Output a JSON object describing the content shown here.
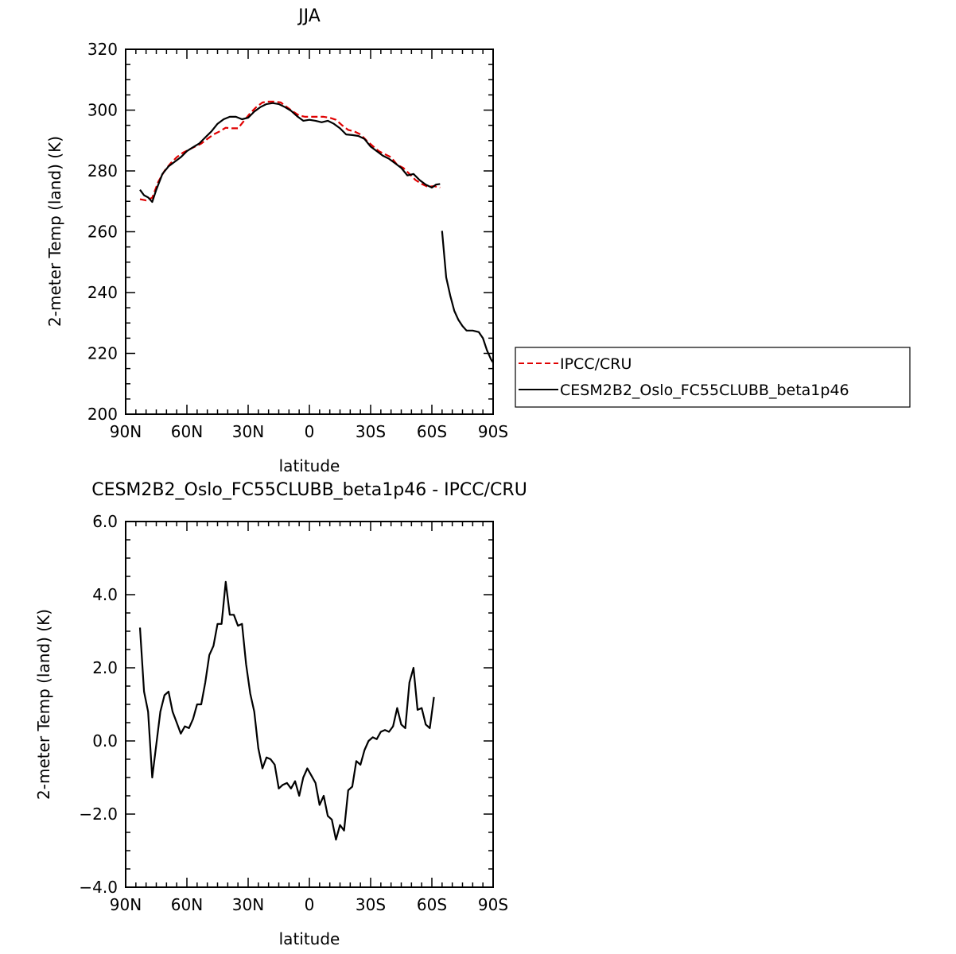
{
  "chart_data": [
    {
      "type": "line",
      "title": "JJA",
      "xlabel": "latitude",
      "ylabel": "2-meter Temp (land) (K)",
      "xlim": [
        90,
        -90
      ],
      "ylim": [
        200,
        320
      ],
      "x_ticks": [
        {
          "value": 90,
          "label": "90N"
        },
        {
          "value": 60,
          "label": "60N"
        },
        {
          "value": 30,
          "label": "30N"
        },
        {
          "value": 0,
          "label": "0"
        },
        {
          "value": -30,
          "label": "30S"
        },
        {
          "value": -60,
          "label": "60S"
        },
        {
          "value": -90,
          "label": "90S"
        }
      ],
      "y_ticks": [
        {
          "value": 200,
          "label": "200"
        },
        {
          "value": 220,
          "label": "220"
        },
        {
          "value": 240,
          "label": "240"
        },
        {
          "value": 260,
          "label": "260"
        },
        {
          "value": 280,
          "label": "280"
        },
        {
          "value": 300,
          "label": "300"
        },
        {
          "value": 320,
          "label": "320"
        }
      ],
      "legend": {
        "placement": "right"
      },
      "series": [
        {
          "name": "IPCC/CRU",
          "color": "#e00000",
          "style": "dashed",
          "segments": [
            [
              [
                83,
                270.7
              ],
              [
                80,
                270.3
              ],
              [
                77,
                271.2
              ],
              [
                74,
                276.5
              ],
              [
                71,
                280
              ],
              [
                68,
                282.5
              ],
              [
                65,
                284.5
              ],
              [
                62,
                286
              ],
              [
                59,
                287
              ],
              [
                56,
                288
              ],
              [
                53,
                289
              ],
              [
                50,
                290.5
              ],
              [
                47,
                292
              ],
              [
                44,
                293
              ],
              [
                41,
                294.2
              ],
              [
                38,
                294
              ],
              [
                35,
                294
              ],
              [
                32,
                296.5
              ],
              [
                29,
                299
              ],
              [
                26,
                301
              ],
              [
                23,
                302.5
              ],
              [
                20,
                302.8
              ],
              [
                17,
                302.8
              ],
              [
                14,
                302.5
              ],
              [
                11,
                301
              ],
              [
                8,
                299.5
              ],
              [
                5,
                298.2
              ],
              [
                2,
                297.8
              ],
              [
                -1,
                297.8
              ],
              [
                -4,
                297.8
              ],
              [
                -7,
                297.8
              ],
              [
                -10,
                297.5
              ],
              [
                -13,
                296.8
              ],
              [
                -16,
                295
              ],
              [
                -19,
                293.5
              ],
              [
                -22,
                293
              ],
              [
                -25,
                292
              ],
              [
                -28,
                290
              ],
              [
                -31,
                288.2
              ],
              [
                -34,
                286.5
              ],
              [
                -37,
                285.5
              ],
              [
                -40,
                284.5
              ],
              [
                -43,
                282
              ],
              [
                -46,
                281
              ],
              [
                -49,
                279
              ],
              [
                -52,
                277
              ],
              [
                -55,
                275.7
              ],
              [
                -58,
                274.8
              ],
              [
                -61,
                275
              ],
              [
                -64,
                274.5
              ]
            ]
          ]
        },
        {
          "name": "CESM2B2_Oslo_FC55CLUBB_beta1p46",
          "color": "#000000",
          "style": "solid",
          "segments": [
            [
              [
                83,
                273.8
              ],
              [
                81,
                272
              ],
              [
                79,
                271.3
              ],
              [
                77,
                269.8
              ],
              [
                75,
                273.8
              ],
              [
                72,
                279
              ],
              [
                69,
                281.5
              ],
              [
                66,
                283
              ],
              [
                63,
                284.5
              ],
              [
                60,
                286.5
              ],
              [
                57,
                287.8
              ],
              [
                54,
                289
              ],
              [
                51,
                291
              ],
              [
                48,
                293
              ],
              [
                45,
                295.5
              ],
              [
                42,
                297
              ],
              [
                39,
                297.8
              ],
              [
                36,
                297.8
              ],
              [
                33,
                297
              ],
              [
                30,
                297.5
              ],
              [
                27,
                299.5
              ],
              [
                24,
                301
              ],
              [
                21,
                302
              ],
              [
                18,
                302.3
              ],
              [
                15,
                302
              ],
              [
                12,
                301
              ],
              [
                9,
                299.8
              ],
              [
                6,
                298
              ],
              [
                3,
                296.5
              ],
              [
                0,
                296.8
              ],
              [
                -3,
                296.5
              ],
              [
                -6,
                296
              ],
              [
                -9,
                296.5
              ],
              [
                -12,
                295.5
              ],
              [
                -15,
                294
              ],
              [
                -18,
                292
              ],
              [
                -21,
                291.8
              ],
              [
                -24,
                291.5
              ],
              [
                -27,
                290.5
              ],
              [
                -30,
                288
              ],
              [
                -33,
                286.5
              ],
              [
                -36,
                285
              ],
              [
                -39,
                284
              ],
              [
                -42,
                282.5
              ],
              [
                -45,
                281
              ],
              [
                -48,
                278.5
              ],
              [
                -51,
                279
              ],
              [
                -54,
                277
              ],
              [
                -57,
                275.5
              ],
              [
                -60,
                274.5
              ],
              [
                -62,
                275.5
              ],
              [
                -64,
                275.7
              ]
            ],
            [
              [
                -65,
                260.3
              ],
              [
                -67,
                245
              ],
              [
                -69,
                239
              ],
              [
                -71,
                234
              ],
              [
                -73,
                231
              ],
              [
                -75,
                229
              ],
              [
                -77,
                227.5
              ],
              [
                -80,
                227.5
              ],
              [
                -83,
                227
              ],
              [
                -85,
                225
              ],
              [
                -87,
                221
              ],
              [
                -89,
                218
              ],
              [
                -90,
                217
              ]
            ]
          ]
        }
      ]
    },
    {
      "type": "line",
      "title": "CESM2B2_Oslo_FC55CLUBB_beta1p46 - IPCC/CRU",
      "xlabel": "latitude",
      "ylabel": "2-meter Temp (land) (K)",
      "xlim": [
        90,
        -90
      ],
      "ylim": [
        -4.0,
        6.0
      ],
      "x_ticks": [
        {
          "value": 90,
          "label": "90N"
        },
        {
          "value": 60,
          "label": "60N"
        },
        {
          "value": 30,
          "label": "30N"
        },
        {
          "value": 0,
          "label": "0"
        },
        {
          "value": -30,
          "label": "30S"
        },
        {
          "value": -60,
          "label": "60S"
        },
        {
          "value": -90,
          "label": "90S"
        }
      ],
      "y_ticks": [
        {
          "value": -4.0,
          "label": "−4.0"
        },
        {
          "value": -2.0,
          "label": "−2.0"
        },
        {
          "value": 0.0,
          "label": "0.0"
        },
        {
          "value": 2.0,
          "label": "2.0"
        },
        {
          "value": 4.0,
          "label": "4.0"
        },
        {
          "value": 6.0,
          "label": "6.0"
        }
      ],
      "series": [
        {
          "color": "#000000",
          "style": "solid",
          "segments": [
            [
              [
                83,
                3.1
              ],
              [
                81,
                1.35
              ],
              [
                79,
                0.8
              ],
              [
                77,
                -1.0
              ],
              [
                75,
                -0.1
              ],
              [
                73,
                0.8
              ],
              [
                71,
                1.25
              ],
              [
                69,
                1.35
              ],
              [
                67,
                0.8
              ],
              [
                65,
                0.5
              ],
              [
                63,
                0.2
              ],
              [
                61,
                0.4
              ],
              [
                59,
                0.35
              ],
              [
                57,
                0.6
              ],
              [
                55,
                1.0
              ],
              [
                53,
                1.0
              ],
              [
                51,
                1.6
              ],
              [
                49,
                2.35
              ],
              [
                47,
                2.6
              ],
              [
                45,
                3.2
              ],
              [
                43,
                3.2
              ],
              [
                41,
                4.35
              ],
              [
                39,
                3.45
              ],
              [
                37,
                3.45
              ],
              [
                35,
                3.15
              ],
              [
                33,
                3.2
              ],
              [
                31,
                2.1
              ],
              [
                29,
                1.3
              ],
              [
                27,
                0.8
              ],
              [
                25,
                -0.2
              ],
              [
                23,
                -0.75
              ],
              [
                21,
                -0.45
              ],
              [
                19,
                -0.5
              ],
              [
                17,
                -0.65
              ],
              [
                15,
                -1.3
              ],
              [
                13,
                -1.2
              ],
              [
                11,
                -1.15
              ],
              [
                9,
                -1.3
              ],
              [
                7,
                -1.1
              ],
              [
                5,
                -1.5
              ],
              [
                3,
                -1.0
              ],
              [
                1,
                -0.75
              ],
              [
                -1,
                -0.95
              ],
              [
                -3,
                -1.15
              ],
              [
                -5,
                -1.75
              ],
              [
                -7,
                -1.5
              ],
              [
                -9,
                -2.05
              ],
              [
                -11,
                -2.15
              ],
              [
                -13,
                -2.7
              ],
              [
                -15,
                -2.3
              ],
              [
                -17,
                -2.45
              ],
              [
                -19,
                -1.35
              ],
              [
                -21,
                -1.25
              ],
              [
                -23,
                -0.55
              ],
              [
                -25,
                -0.65
              ],
              [
                -27,
                -0.25
              ],
              [
                -29,
                0.0
              ],
              [
                -31,
                0.1
              ],
              [
                -33,
                0.05
              ],
              [
                -35,
                0.25
              ],
              [
                -37,
                0.3
              ],
              [
                -39,
                0.25
              ],
              [
                -41,
                0.4
              ],
              [
                -43,
                0.9
              ],
              [
                -45,
                0.45
              ],
              [
                -47,
                0.35
              ],
              [
                -49,
                1.6
              ],
              [
                -51,
                2.0
              ],
              [
                -53,
                0.85
              ],
              [
                -55,
                0.9
              ],
              [
                -57,
                0.45
              ],
              [
                -59,
                0.35
              ],
              [
                -61,
                1.2
              ]
            ]
          ]
        }
      ]
    }
  ]
}
